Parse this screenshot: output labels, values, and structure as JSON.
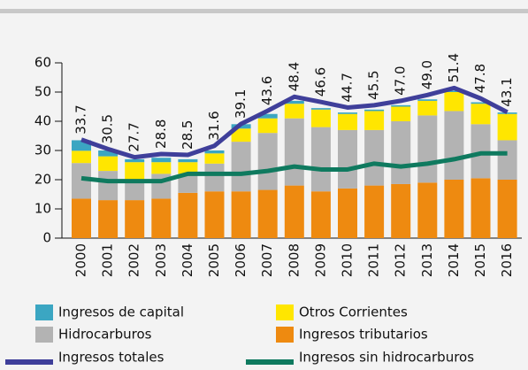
{
  "chart_data": {
    "type": "bar",
    "stacked": true,
    "categories": [
      "2000",
      "2001",
      "2002",
      "2003",
      "2004",
      "2005",
      "2006",
      "2007",
      "2008",
      "2009",
      "2010",
      "2011",
      "2012",
      "2013",
      "2014",
      "2015",
      "2016"
    ],
    "ylim": [
      0,
      60
    ],
    "yticks": [
      0,
      10,
      20,
      30,
      40,
      50,
      60
    ],
    "series": [
      {
        "name": "Ingresos tributarios",
        "color": "#ee8a10",
        "values": [
          13.5,
          13,
          13,
          13.5,
          15.5,
          16,
          16,
          16.5,
          18,
          16,
          17,
          18,
          18.5,
          19,
          20,
          20.5,
          20
        ]
      },
      {
        "name": "Hidrocarburos",
        "color": "#b3b3b3",
        "values": [
          12.2,
          10,
          6.5,
          8.5,
          6.5,
          9.5,
          17,
          19.5,
          23,
          22,
          20,
          19,
          21.5,
          23,
          23.5,
          18.5,
          13.5
        ]
      },
      {
        "name": "Otros Corrientes",
        "color": "#ffe600",
        "values": [
          4.2,
          5,
          6.5,
          4,
          4,
          3.5,
          4.5,
          5,
          5,
          6,
          5.5,
          6.5,
          5,
          5,
          6.5,
          7,
          9
        ]
      },
      {
        "name": "Ingresos de capital",
        "color": "#3ba6c2",
        "values": [
          3.6,
          2,
          1,
          1.5,
          1,
          1,
          1.5,
          1.5,
          1,
          0.5,
          0.5,
          0.5,
          0.5,
          0.5,
          0.5,
          0.5,
          0.5
        ]
      },
      {
        "name": "Ingresos totales",
        "type": "line",
        "color": "#3f3f9a",
        "values": [
          33.7,
          30.5,
          27.7,
          28.8,
          28.5,
          31.6,
          39.1,
          43.6,
          48.4,
          46.6,
          44.7,
          45.5,
          47.0,
          49.0,
          51.4,
          47.8,
          43.1
        ],
        "value_labels": [
          "33.7",
          "30.5",
          "27.7",
          "28.8",
          "28.5",
          "31.6",
          "39.1",
          "43.6",
          "48.4",
          "46.6",
          "44.7",
          "45.5",
          "47.0",
          "49.0",
          "51.4",
          "47.8",
          "43.1"
        ]
      },
      {
        "name": "Ingresos sin hidrocarburos",
        "type": "line",
        "color": "#0f7a5f",
        "values": [
          20.5,
          19.5,
          19.5,
          19.5,
          22,
          22,
          22,
          23,
          24.5,
          23.5,
          23.5,
          25.5,
          24.5,
          25.5,
          27,
          29,
          29
        ]
      }
    ]
  }
}
